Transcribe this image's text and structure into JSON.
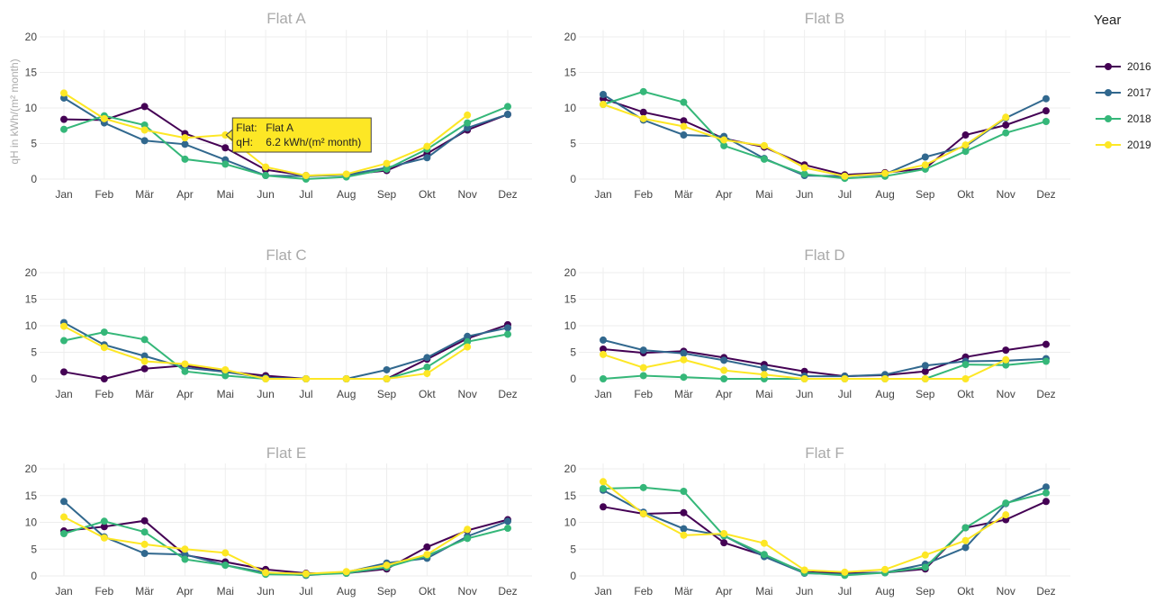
{
  "legend": {
    "title": "Year",
    "items": [
      {
        "label": "2016",
        "color": "#440154"
      },
      {
        "label": "2017",
        "color": "#31688e"
      },
      {
        "label": "2018",
        "color": "#35b779"
      },
      {
        "label": "2019",
        "color": "#fde725"
      }
    ]
  },
  "tooltip": {
    "flat_label": "Flat:",
    "flat_value": "Flat A",
    "q_label": "qH:",
    "q_value": "6.2 kWh/(m² month)",
    "panel": 0,
    "month_index": 4,
    "value": 6.2,
    "bg_color": "#fde725"
  },
  "chart_data": [
    {
      "type": "line",
      "title": "Flat A",
      "categories": [
        "Jan",
        "Feb",
        "Mär",
        "Apr",
        "Mai",
        "Jun",
        "Jul",
        "Aug",
        "Sep",
        "Okt",
        "Nov",
        "Dez"
      ],
      "ylabel": "qH in kWh/(m² month)",
      "ylim": [
        0,
        21
      ],
      "yticks": [
        0,
        5,
        10,
        15,
        20
      ],
      "series": [
        {
          "name": "2016",
          "values": [
            8.4,
            8.3,
            10.2,
            6.4,
            4.4,
            1.3,
            0.5,
            0.6,
            1.2,
            3.6,
            6.9,
            9.1
          ]
        },
        {
          "name": "2017",
          "values": [
            11.4,
            7.9,
            5.4,
            4.9,
            2.7,
            0.5,
            0.4,
            0.6,
            1.6,
            3.0,
            7.2,
            9.1
          ]
        },
        {
          "name": "2018",
          "values": [
            7.0,
            8.9,
            7.6,
            2.8,
            2.1,
            0.5,
            0.0,
            0.3,
            1.4,
            4.2,
            7.9,
            10.2
          ]
        },
        {
          "name": "2019",
          "values": [
            12.1,
            8.5,
            6.9,
            5.8,
            6.2,
            1.7,
            0.5,
            0.7,
            2.2,
            4.6,
            9.0,
            null
          ]
        }
      ]
    },
    {
      "type": "line",
      "title": "Flat B",
      "categories": [
        "Jan",
        "Feb",
        "Mär",
        "Apr",
        "Mai",
        "Jun",
        "Jul",
        "Aug",
        "Sep",
        "Okt",
        "Nov",
        "Dez"
      ],
      "ylim": [
        0,
        21
      ],
      "yticks": [
        0,
        5,
        10,
        15,
        20
      ],
      "series": [
        {
          "name": "2016",
          "values": [
            11.3,
            9.4,
            8.2,
            5.7,
            4.5,
            2.0,
            0.6,
            0.9,
            1.5,
            6.2,
            7.6,
            9.6
          ]
        },
        {
          "name": "2017",
          "values": [
            11.9,
            8.3,
            6.2,
            6.0,
            2.9,
            0.5,
            0.4,
            0.7,
            3.1,
            4.6,
            8.6,
            11.3
          ]
        },
        {
          "name": "2018",
          "values": [
            10.5,
            12.3,
            10.8,
            4.7,
            2.8,
            0.7,
            0.1,
            0.4,
            1.4,
            3.9,
            6.5,
            8.1
          ]
        },
        {
          "name": "2019",
          "values": [
            10.5,
            8.5,
            7.4,
            5.5,
            4.7,
            1.6,
            0.4,
            0.8,
            2.0,
            4.8,
            8.7,
            null
          ]
        }
      ]
    },
    {
      "type": "line",
      "title": "Flat C",
      "categories": [
        "Jan",
        "Feb",
        "Mär",
        "Apr",
        "Mai",
        "Jun",
        "Jul",
        "Aug",
        "Sep",
        "Okt",
        "Nov",
        "Dez"
      ],
      "ylim": [
        0,
        21
      ],
      "yticks": [
        0,
        5,
        10,
        15,
        20
      ],
      "series": [
        {
          "name": "2016",
          "values": [
            1.3,
            0.0,
            1.9,
            2.5,
            1.4,
            0.6,
            0.0,
            0.0,
            0.0,
            3.7,
            7.6,
            10.2
          ]
        },
        {
          "name": "2017",
          "values": [
            10.6,
            6.4,
            4.3,
            2.1,
            1.3,
            0.2,
            0.0,
            0.0,
            1.7,
            4.0,
            8.0,
            9.6
          ]
        },
        {
          "name": "2018",
          "values": [
            7.2,
            8.8,
            7.4,
            1.4,
            0.6,
            0.0,
            0.0,
            0.0,
            0.0,
            2.2,
            7.0,
            8.4
          ]
        },
        {
          "name": "2019",
          "values": [
            9.9,
            5.9,
            3.3,
            2.8,
            1.7,
            0.0,
            0.0,
            0.0,
            0.0,
            1.0,
            6.0,
            null
          ]
        }
      ]
    },
    {
      "type": "line",
      "title": "Flat D",
      "categories": [
        "Jan",
        "Feb",
        "Mär",
        "Apr",
        "Mai",
        "Jun",
        "Jul",
        "Aug",
        "Sep",
        "Okt",
        "Nov",
        "Dez"
      ],
      "ylim": [
        0,
        21
      ],
      "yticks": [
        0,
        5,
        10,
        15,
        20
      ],
      "series": [
        {
          "name": "2016",
          "values": [
            5.6,
            4.9,
            5.2,
            4.0,
            2.7,
            1.4,
            0.5,
            0.7,
            1.4,
            4.1,
            5.4,
            6.5
          ]
        },
        {
          "name": "2017",
          "values": [
            7.3,
            5.4,
            4.8,
            3.5,
            2.0,
            0.5,
            0.5,
            0.8,
            2.5,
            3.3,
            3.4,
            3.8
          ]
        },
        {
          "name": "2018",
          "values": [
            0.0,
            0.6,
            0.3,
            0.0,
            0.0,
            0.0,
            0.0,
            0.0,
            0.0,
            2.7,
            2.6,
            3.3
          ]
        },
        {
          "name": "2019",
          "values": [
            4.6,
            2.1,
            3.6,
            1.6,
            0.8,
            0.0,
            0.0,
            0.0,
            0.0,
            0.0,
            3.6,
            null
          ]
        }
      ]
    },
    {
      "type": "line",
      "title": "Flat E",
      "categories": [
        "Jan",
        "Feb",
        "Mär",
        "Apr",
        "Mai",
        "Jun",
        "Jul",
        "Aug",
        "Sep",
        "Okt",
        "Nov",
        "Dez"
      ],
      "ylim": [
        0,
        21
      ],
      "yticks": [
        0,
        5,
        10,
        15,
        20
      ],
      "series": [
        {
          "name": "2016",
          "values": [
            8.4,
            9.2,
            10.3,
            3.9,
            2.6,
            1.2,
            0.5,
            0.5,
            1.3,
            5.4,
            8.5,
            10.5
          ]
        },
        {
          "name": "2017",
          "values": [
            13.9,
            7.3,
            4.2,
            4.0,
            2.0,
            0.6,
            0.1,
            0.7,
            2.4,
            3.3,
            7.4,
            10.2
          ]
        },
        {
          "name": "2018",
          "values": [
            7.9,
            10.2,
            8.2,
            3.1,
            2.0,
            0.3,
            0.2,
            0.5,
            1.6,
            3.8,
            7.0,
            8.9
          ]
        },
        {
          "name": "2019",
          "values": [
            11.0,
            7.1,
            5.9,
            5.0,
            4.3,
            0.6,
            0.4,
            0.8,
            2.0,
            4.0,
            8.7,
            null
          ]
        }
      ]
    },
    {
      "type": "line",
      "title": "Flat F",
      "categories": [
        "Jan",
        "Feb",
        "Mär",
        "Apr",
        "Mai",
        "Jun",
        "Jul",
        "Aug",
        "Sep",
        "Okt",
        "Nov",
        "Dez"
      ],
      "ylim": [
        0,
        21
      ],
      "yticks": [
        0,
        5,
        10,
        15,
        20
      ],
      "series": [
        {
          "name": "2016",
          "values": [
            12.9,
            11.6,
            11.8,
            6.2,
            3.8,
            0.7,
            0.5,
            0.6,
            1.3,
            9.0,
            10.5,
            13.9
          ]
        },
        {
          "name": "2017",
          "values": [
            16.0,
            11.9,
            8.8,
            7.5,
            3.6,
            0.5,
            0.3,
            0.6,
            2.2,
            5.3,
            13.5,
            16.6
          ]
        },
        {
          "name": "2018",
          "values": [
            16.3,
            16.5,
            15.8,
            7.5,
            4.0,
            0.6,
            0.1,
            0.6,
            1.6,
            9.0,
            13.6,
            15.5
          ]
        },
        {
          "name": "2019",
          "values": [
            17.6,
            11.6,
            7.6,
            7.9,
            6.1,
            1.1,
            0.7,
            1.2,
            3.9,
            6.6,
            11.4,
            null
          ]
        }
      ]
    }
  ]
}
